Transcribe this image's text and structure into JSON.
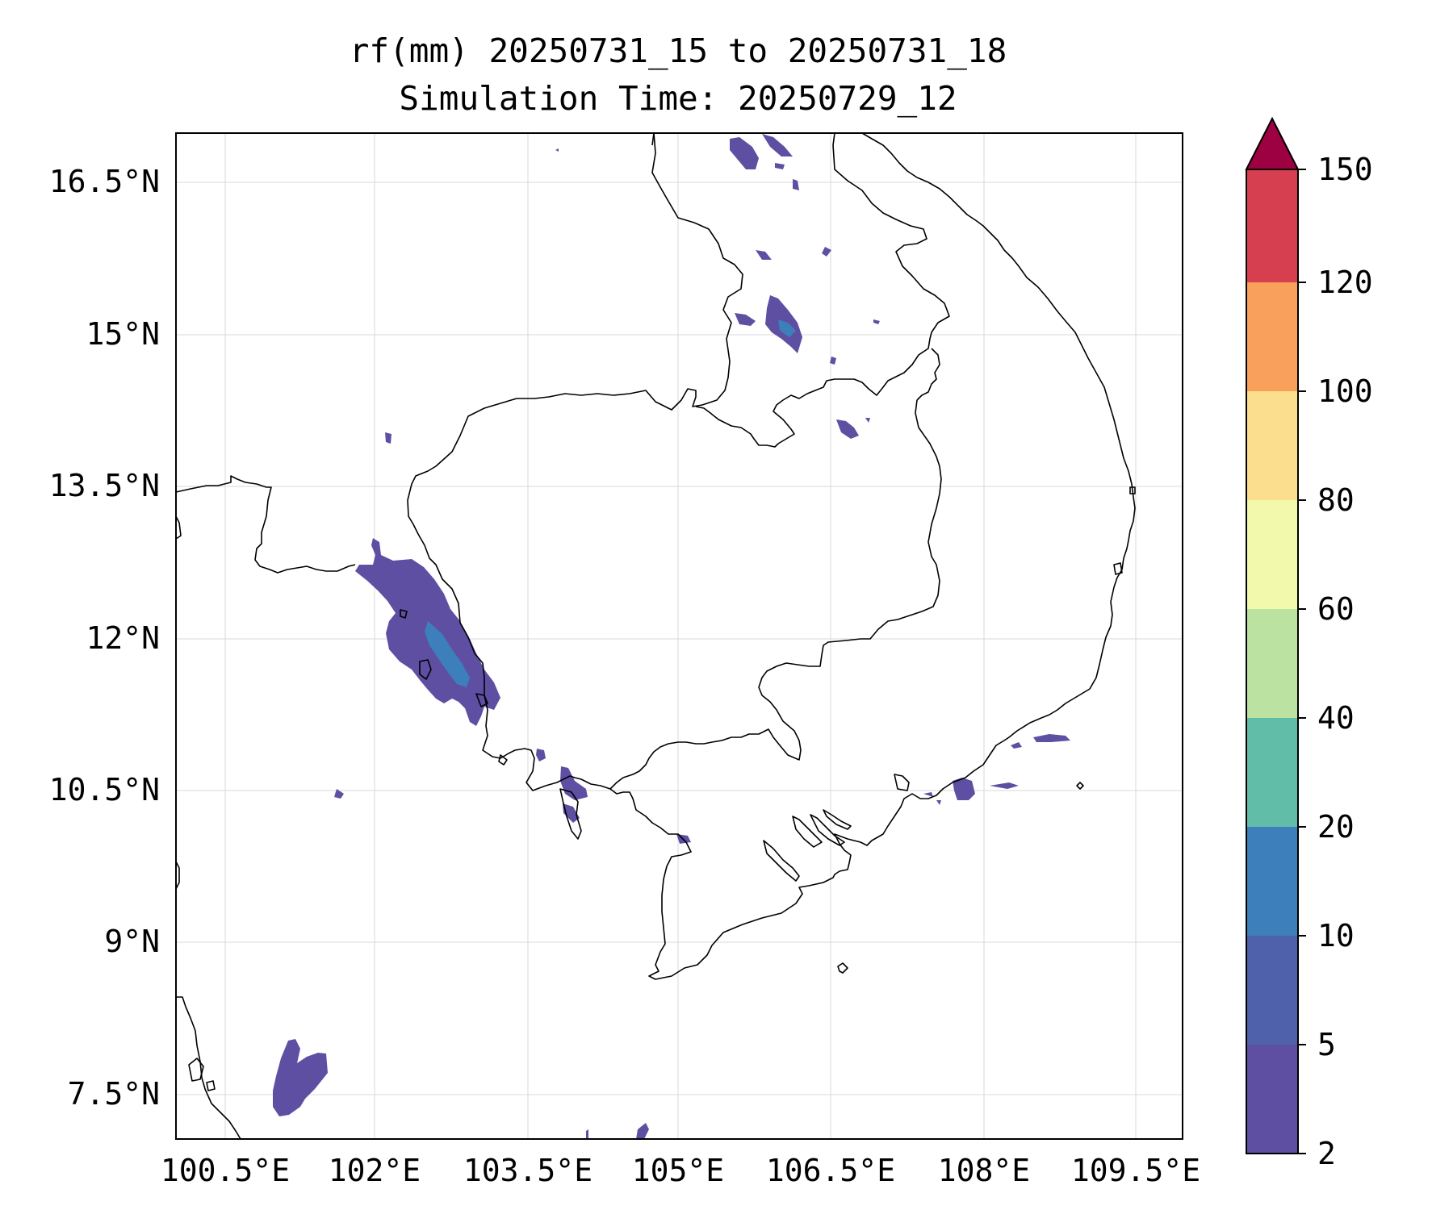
{
  "title": {
    "line1": "rf(mm) 20250731_15 to 20250731_18",
    "line2": "Simulation Time: 20250729_12"
  },
  "axes": {
    "x_ticks": [
      "100.5°E",
      "102°E",
      "103.5°E",
      "105°E",
      "106.5°E",
      "108°E",
      "109.5°E"
    ],
    "y_ticks": [
      "16.5°N",
      "15°N",
      "13.5°N",
      "12°N",
      "10.5°N",
      "9°N",
      "7.5°N"
    ],
    "lon_range": [
      100.5,
      110.4
    ],
    "lat_range": [
      7.0,
      16.9
    ],
    "grid": true
  },
  "colorbar": {
    "levels": [
      "2",
      "5",
      "10",
      "20",
      "40",
      "60",
      "80",
      "100",
      "120",
      "150"
    ],
    "colors": [
      "#5e4fa2",
      "#4f61aa",
      "#3d7fba",
      "#61bca8",
      "#bbe2a0",
      "#f2f9ac",
      "#fbdf8e",
      "#f9a05c",
      "#d63f4f",
      "#9e0142"
    ],
    "extend": "max"
  }
}
